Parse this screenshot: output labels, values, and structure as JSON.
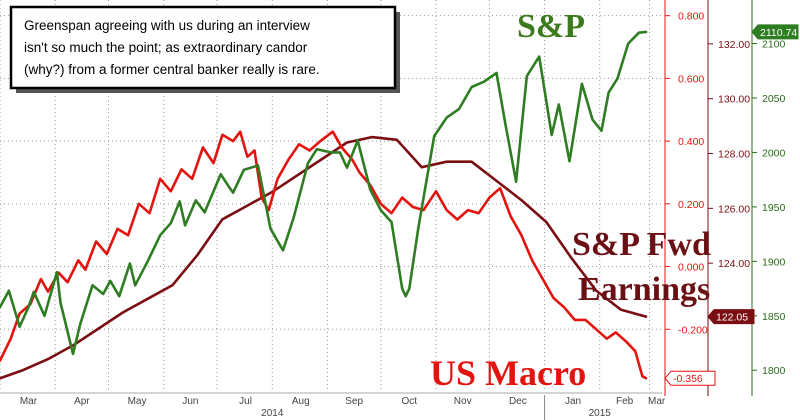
{
  "chart_data": {
    "type": "line",
    "annotation": [
      "Greenspan agreeing with us during an interview",
      "isn't so much the point; as extraordinary candor",
      "(why?) from a former central banker really is rare."
    ],
    "x_axis": {
      "month_labels": [
        "Mar",
        "Apr",
        "May",
        "Jun",
        "Jul",
        "Aug",
        "Sep",
        "Oct",
        "Nov",
        "Dec",
        "Jan",
        "Feb",
        "Mar"
      ],
      "year_labels": [
        "2014",
        "2015"
      ],
      "range": [
        "2014-03-01",
        "2015-03-08"
      ]
    },
    "axes": [
      {
        "id": "macro",
        "range": [
          -0.4,
          0.85
        ],
        "tick_values": [
          -0.2,
          0,
          0.2,
          0.4,
          0.6,
          0.8
        ],
        "tick_labels": [
          "-0.200",
          "0.000",
          "0.200",
          "0.400",
          "0.600",
          "0.800"
        ],
        "color": "#e3140f"
      },
      {
        "id": "earnings",
        "range": [
          119.3,
          133.6
        ],
        "tick_values": [
          122,
          124,
          126,
          128,
          130,
          132
        ],
        "tick_labels": [
          "122.00",
          "124.00",
          "126.00",
          "128.00",
          "130.00",
          "132.00"
        ],
        "color": "#7a0e13"
      },
      {
        "id": "spx",
        "range": [
          1780,
          2140
        ],
        "tick_values": [
          1800,
          1850,
          1900,
          1950,
          2000,
          2050,
          2100
        ],
        "tick_labels": [
          "1800",
          "1850",
          "1900",
          "1950",
          "2000",
          "2050",
          "2100"
        ],
        "color": "#2b6b1a"
      }
    ],
    "series": [
      {
        "name": "S&P",
        "axis": "spx",
        "color": "#2e7d22",
        "last_value_label": "2110.74",
        "points": [
          [
            "2014-03-01",
            1858
          ],
          [
            "2014-03-06",
            1873
          ],
          [
            "2014-03-12",
            1840
          ],
          [
            "2014-03-17",
            1858
          ],
          [
            "2014-03-20",
            1872
          ],
          [
            "2014-03-26",
            1850
          ],
          [
            "2014-04-02",
            1890
          ],
          [
            "2014-04-04",
            1862
          ],
          [
            "2014-04-11",
            1815
          ],
          [
            "2014-04-15",
            1842
          ],
          [
            "2014-04-22",
            1878
          ],
          [
            "2014-04-28",
            1870
          ],
          [
            "2014-05-02",
            1882
          ],
          [
            "2014-05-07",
            1868
          ],
          [
            "2014-05-13",
            1898
          ],
          [
            "2014-05-16",
            1878
          ],
          [
            "2014-05-23",
            1900
          ],
          [
            "2014-05-30",
            1924
          ],
          [
            "2014-06-05",
            1935
          ],
          [
            "2014-06-10",
            1955
          ],
          [
            "2014-06-13",
            1933
          ],
          [
            "2014-06-19",
            1956
          ],
          [
            "2014-06-24",
            1945
          ],
          [
            "2014-07-03",
            1980
          ],
          [
            "2014-07-07",
            1970
          ],
          [
            "2014-07-10",
            1963
          ],
          [
            "2014-07-16",
            1984
          ],
          [
            "2014-07-24",
            1988
          ],
          [
            "2014-07-31",
            1930
          ],
          [
            "2014-08-07",
            1910
          ],
          [
            "2014-08-13",
            1940
          ],
          [
            "2014-08-21",
            1990
          ],
          [
            "2014-08-26",
            2003
          ],
          [
            "2014-09-03",
            2000
          ],
          [
            "2014-09-08",
            2000
          ],
          [
            "2014-09-12",
            1986
          ],
          [
            "2014-09-18",
            2011
          ],
          [
            "2014-09-25",
            1966
          ],
          [
            "2014-10-01",
            1947
          ],
          [
            "2014-10-07",
            1936
          ],
          [
            "2014-10-13",
            1875
          ],
          [
            "2014-10-15",
            1868
          ],
          [
            "2014-10-17",
            1875
          ],
          [
            "2014-10-22",
            1930
          ],
          [
            "2014-10-31",
            2015
          ],
          [
            "2014-11-07",
            2032
          ],
          [
            "2014-11-14",
            2040
          ],
          [
            "2014-11-21",
            2060
          ],
          [
            "2014-11-28",
            2065
          ],
          [
            "2014-12-05",
            2073
          ],
          [
            "2014-12-10",
            2026
          ],
          [
            "2014-12-16",
            1973
          ],
          [
            "2014-12-22",
            2070
          ],
          [
            "2014-12-29",
            2088
          ],
          [
            "2015-01-05",
            2016
          ],
          [
            "2015-01-09",
            2044
          ],
          [
            "2015-01-15",
            1992
          ],
          [
            "2015-01-22",
            2063
          ],
          [
            "2015-01-28",
            2030
          ],
          [
            "2015-02-02",
            2020
          ],
          [
            "2015-02-06",
            2055
          ],
          [
            "2015-02-11",
            2068
          ],
          [
            "2015-02-17",
            2100
          ],
          [
            "2015-02-23",
            2110
          ],
          [
            "2015-02-27",
            2110.74
          ]
        ]
      },
      {
        "name": "S&P Fwd Earnings",
        "axis": "earnings",
        "color": "#7a0e13",
        "last_value_label": "122.05",
        "points": [
          [
            "2014-03-01",
            119.8
          ],
          [
            "2014-03-14",
            120.1
          ],
          [
            "2014-03-28",
            120.5
          ],
          [
            "2014-04-11",
            121.0
          ],
          [
            "2014-04-25",
            121.6
          ],
          [
            "2014-05-09",
            122.2
          ],
          [
            "2014-05-23",
            122.7
          ],
          [
            "2014-06-06",
            123.2
          ],
          [
            "2014-06-20",
            124.3
          ],
          [
            "2014-07-04",
            125.6
          ],
          [
            "2014-07-18",
            126.1
          ],
          [
            "2014-08-01",
            126.6
          ],
          [
            "2014-08-15",
            127.2
          ],
          [
            "2014-08-29",
            127.8
          ],
          [
            "2014-09-12",
            128.4
          ],
          [
            "2014-09-26",
            128.6
          ],
          [
            "2014-10-10",
            128.5
          ],
          [
            "2014-10-24",
            127.5
          ],
          [
            "2014-11-07",
            127.7
          ],
          [
            "2014-11-21",
            127.7
          ],
          [
            "2014-12-05",
            127.0
          ],
          [
            "2014-12-19",
            126.3
          ],
          [
            "2015-01-02",
            125.5
          ],
          [
            "2015-01-16",
            124.2
          ],
          [
            "2015-01-30",
            123.0
          ],
          [
            "2015-02-13",
            122.3
          ],
          [
            "2015-02-27",
            122.05
          ]
        ]
      },
      {
        "name": "US Macro",
        "axis": "macro",
        "color": "#e3140f",
        "last_value_label": "-0.356",
        "points": [
          [
            "2014-03-01",
            -0.3
          ],
          [
            "2014-03-07",
            -0.23
          ],
          [
            "2014-03-12",
            -0.15
          ],
          [
            "2014-03-18",
            -0.12
          ],
          [
            "2014-03-24",
            -0.04
          ],
          [
            "2014-03-28",
            -0.08
          ],
          [
            "2014-04-03",
            -0.02
          ],
          [
            "2014-04-08",
            -0.05
          ],
          [
            "2014-04-14",
            0.02
          ],
          [
            "2014-04-18",
            -0.01
          ],
          [
            "2014-04-24",
            0.08
          ],
          [
            "2014-04-30",
            0.04
          ],
          [
            "2014-05-06",
            0.12
          ],
          [
            "2014-05-12",
            0.1
          ],
          [
            "2014-05-18",
            0.2
          ],
          [
            "2014-05-24",
            0.17
          ],
          [
            "2014-05-30",
            0.28
          ],
          [
            "2014-06-05",
            0.24
          ],
          [
            "2014-06-11",
            0.31
          ],
          [
            "2014-06-17",
            0.28
          ],
          [
            "2014-06-23",
            0.38
          ],
          [
            "2014-06-29",
            0.33
          ],
          [
            "2014-07-04",
            0.42
          ],
          [
            "2014-07-10",
            0.4
          ],
          [
            "2014-07-14",
            0.43
          ],
          [
            "2014-07-18",
            0.35
          ],
          [
            "2014-07-22",
            0.37
          ],
          [
            "2014-07-26",
            0.22
          ],
          [
            "2014-07-30",
            0.18
          ],
          [
            "2014-08-04",
            0.28
          ],
          [
            "2014-08-10",
            0.34
          ],
          [
            "2014-08-16",
            0.39
          ],
          [
            "2014-08-22",
            0.37
          ],
          [
            "2014-08-28",
            0.4
          ],
          [
            "2014-09-04",
            0.43
          ],
          [
            "2014-09-09",
            0.38
          ],
          [
            "2014-09-15",
            0.34
          ],
          [
            "2014-09-19",
            0.3
          ],
          [
            "2014-09-25",
            0.26
          ],
          [
            "2014-10-01",
            0.2
          ],
          [
            "2014-10-07",
            0.17
          ],
          [
            "2014-10-13",
            0.22
          ],
          [
            "2014-10-19",
            0.19
          ],
          [
            "2014-10-25",
            0.18
          ],
          [
            "2014-11-01",
            0.24
          ],
          [
            "2014-11-07",
            0.18
          ],
          [
            "2014-11-13",
            0.15
          ],
          [
            "2014-11-19",
            0.18
          ],
          [
            "2014-11-25",
            0.17
          ],
          [
            "2014-12-01",
            0.22
          ],
          [
            "2014-12-07",
            0.25
          ],
          [
            "2014-12-13",
            0.16
          ],
          [
            "2014-12-19",
            0.1
          ],
          [
            "2014-12-25",
            0.02
          ],
          [
            "2014-12-31",
            -0.04
          ],
          [
            "2015-01-06",
            -0.1
          ],
          [
            "2015-01-12",
            -0.13
          ],
          [
            "2015-01-18",
            -0.17
          ],
          [
            "2015-01-24",
            -0.17
          ],
          [
            "2015-01-30",
            -0.2
          ],
          [
            "2015-02-05",
            -0.23
          ],
          [
            "2015-02-10",
            -0.21
          ],
          [
            "2015-02-16",
            -0.24
          ],
          [
            "2015-02-21",
            -0.27
          ],
          [
            "2015-02-25",
            -0.35
          ],
          [
            "2015-02-27",
            -0.356
          ]
        ]
      }
    ],
    "big_labels": {
      "spx": "S&P",
      "earnings_line1": "S&P Fwd",
      "earnings_line2": "Earnings",
      "macro": "US Macro"
    },
    "grid": true
  }
}
